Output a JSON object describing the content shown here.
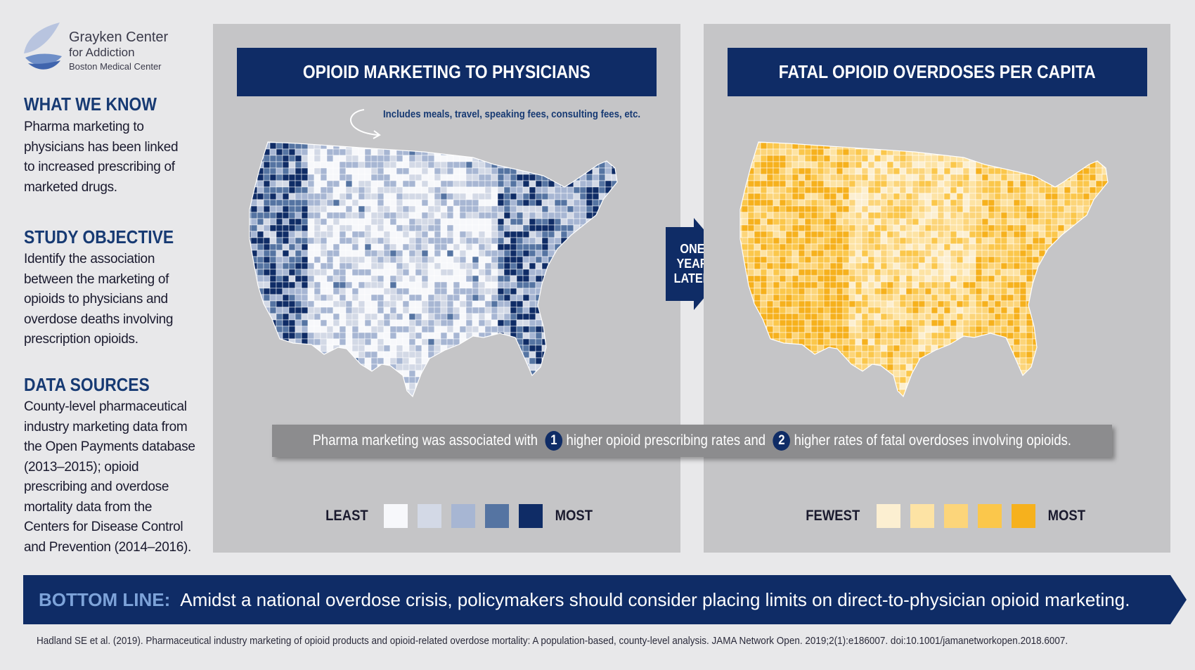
{
  "logo": {
    "line1": "Grayken Center",
    "line2": "for Addiction",
    "line3": "Boston Medical Center"
  },
  "sidebar": {
    "sections": [
      {
        "heading": "WHAT WE KNOW",
        "lines": [
          "Pharma marketing to",
          "physicians has been linked",
          "to increased prescribing of",
          "marketed drugs."
        ]
      },
      {
        "heading": "STUDY OBJECTIVE",
        "lines": [
          "Identify the association",
          "between the marketing of",
          "opioids to physicians and",
          "overdose deaths involving",
          "prescription opioids."
        ]
      },
      {
        "heading": "DATA SOURCES",
        "lines": [
          "County-level pharmaceutical",
          "industry marketing data from",
          "the Open Payments database",
          "(2013–2015); opioid",
          "prescribing and overdose",
          "mortality data from the",
          "Centers for Disease Control",
          "and Prevention (2014–2016)."
        ]
      }
    ]
  },
  "left_panel": {
    "title": "OPIOID MARKETING TO PHYSICIANS",
    "note": "Includes meals, travel, speaking fees, consulting fees, etc.",
    "legend_low": "LEAST",
    "legend_high": "MOST",
    "colors": [
      "#f7f8fb",
      "#d3d9e6",
      "#a7b6d3",
      "#5574a2",
      "#0f2c66"
    ]
  },
  "arrow": {
    "lines": [
      "ONE",
      "YEAR",
      "LATER"
    ],
    "color": "#0f2c66"
  },
  "right_panel": {
    "title": "FATAL OPIOID OVERDOSES PER CAPITA",
    "legend_low": "FEWEST",
    "legend_high": "MOST",
    "colors": [
      "#fcefd1",
      "#fde3a4",
      "#fcd57a",
      "#fbc74b",
      "#f6b11d"
    ]
  },
  "finding": {
    "part1": "Pharma marketing was associated with",
    "badge1": "1",
    "part2": "higher opioid prescribing rates and",
    "badge2": "2",
    "part3": "higher rates of fatal overdoses involving opioids."
  },
  "bottom_line": {
    "label": "BOTTOM LINE:",
    "text": "Amidst a national overdose crisis, policymakers should consider placing limits on direct-to-physician opioid marketing."
  },
  "citation": "Hadland SE et al. (2019). Pharmaceutical industry marketing of opioid products and opioid-related overdose mortality: A population-based, county-level analysis. JAMA Network Open. 2019;2(1):e186007. doi:10.1001/jamanetworkopen.2018.6007."
}
